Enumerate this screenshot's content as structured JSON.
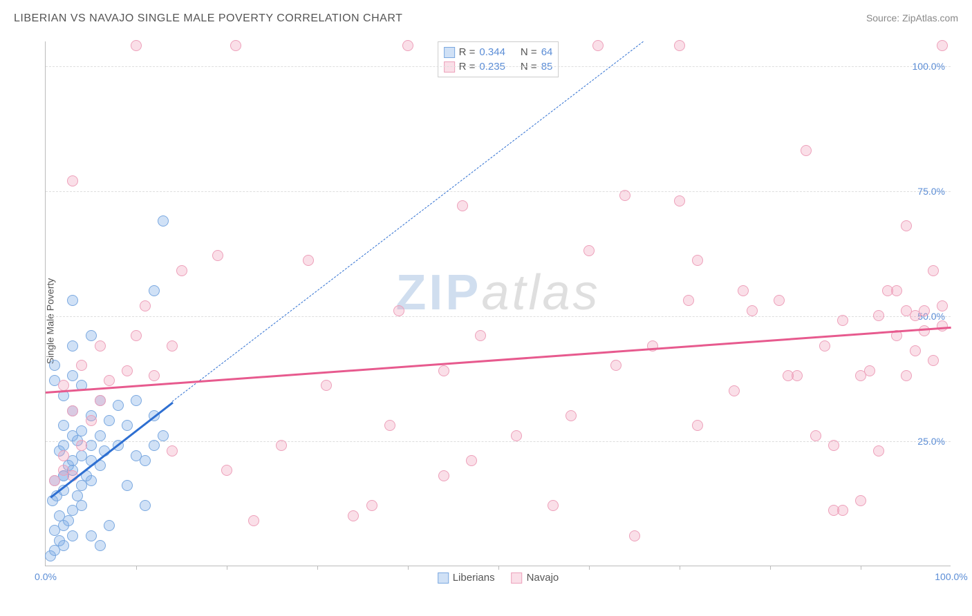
{
  "header": {
    "title": "LIBERIAN VS NAVAJO SINGLE MALE POVERTY CORRELATION CHART",
    "source": "Source: ZipAtlas.com"
  },
  "chart": {
    "type": "scatter",
    "ylabel": "Single Male Poverty",
    "xlim": [
      0,
      100
    ],
    "ylim": [
      0,
      105
    ],
    "background_color": "#ffffff",
    "grid_color": "#dddddd",
    "axis_color": "#bbbbbb",
    "tick_label_color": "#5b8dd6",
    "y_gridlines": [
      25,
      50,
      75,
      100
    ],
    "y_tick_labels": [
      "25.0%",
      "50.0%",
      "75.0%",
      "100.0%"
    ],
    "x_ticks_minor": [
      10,
      20,
      30,
      40,
      50,
      60,
      70,
      80,
      90
    ],
    "x_tick_labels": [
      {
        "pos": 0,
        "label": "0.0%"
      },
      {
        "pos": 100,
        "label": "100.0%"
      }
    ],
    "watermark": {
      "zip": "ZIP",
      "atlas": "atlas"
    },
    "point_radius": 8,
    "point_border_width": 1,
    "series": [
      {
        "name": "Liberians",
        "fill_color": "rgba(120,170,230,0.35)",
        "stroke_color": "#7aa8e0",
        "trend_color": "#2e6fd1",
        "trend_width": 2.5,
        "trend_solid": {
          "x1": 0.5,
          "y1": 14,
          "x2": 14,
          "y2": 33
        },
        "trend_dash": {
          "x1": 14,
          "y1": 33,
          "x2": 66,
          "y2": 105
        },
        "points": [
          [
            0.5,
            2
          ],
          [
            1,
            3
          ],
          [
            1.5,
            5
          ],
          [
            2,
            4
          ],
          [
            1,
            7
          ],
          [
            2,
            8
          ],
          [
            3,
            6
          ],
          [
            1.5,
            10
          ],
          [
            2.5,
            9
          ],
          [
            3,
            11
          ],
          [
            0.8,
            13
          ],
          [
            1.2,
            14
          ],
          [
            2,
            15
          ],
          [
            3.5,
            14
          ],
          [
            4,
            16
          ],
          [
            1,
            17
          ],
          [
            2,
            18
          ],
          [
            3,
            19
          ],
          [
            4.5,
            18
          ],
          [
            5,
            17
          ],
          [
            2.5,
            20
          ],
          [
            3,
            21
          ],
          [
            4,
            22
          ],
          [
            5,
            21
          ],
          [
            6,
            20
          ],
          [
            1.5,
            23
          ],
          [
            2,
            24
          ],
          [
            3.5,
            25
          ],
          [
            5,
            24
          ],
          [
            6.5,
            23
          ],
          [
            8,
            24
          ],
          [
            3,
            26
          ],
          [
            4,
            27
          ],
          [
            6,
            26
          ],
          [
            2,
            28
          ],
          [
            5,
            30
          ],
          [
            7,
            29
          ],
          [
            9,
            28
          ],
          [
            3,
            31
          ],
          [
            6,
            33
          ],
          [
            8,
            32
          ],
          [
            2,
            34
          ],
          [
            4,
            36
          ],
          [
            3,
            38
          ],
          [
            1,
            40
          ],
          [
            3,
            44
          ],
          [
            5,
            46
          ],
          [
            1,
            37
          ],
          [
            10,
            22
          ],
          [
            11,
            21
          ],
          [
            9,
            16
          ],
          [
            11,
            12
          ],
          [
            12,
            24
          ],
          [
            13,
            26
          ],
          [
            10,
            33
          ],
          [
            12,
            30
          ],
          [
            3,
            53
          ],
          [
            12,
            55
          ],
          [
            13,
            69
          ],
          [
            2,
            18
          ],
          [
            4,
            12
          ],
          [
            5,
            6
          ],
          [
            6,
            4
          ],
          [
            7,
            8
          ]
        ]
      },
      {
        "name": "Navajo",
        "fill_color": "rgba(240,150,180,0.30)",
        "stroke_color": "#eda0ba",
        "trend_color": "#e75a8e",
        "trend_width": 2.5,
        "trend_solid": {
          "x1": 0,
          "y1": 35,
          "x2": 100,
          "y2": 48
        },
        "trend_dash": null,
        "points": [
          [
            1,
            17
          ],
          [
            2,
            19
          ],
          [
            3,
            18
          ],
          [
            2,
            22
          ],
          [
            4,
            24
          ],
          [
            5,
            29
          ],
          [
            3,
            31
          ],
          [
            6,
            33
          ],
          [
            2,
            36
          ],
          [
            4,
            40
          ],
          [
            7,
            37
          ],
          [
            9,
            39
          ],
          [
            12,
            38
          ],
          [
            6,
            44
          ],
          [
            10,
            46
          ],
          [
            14,
            44
          ],
          [
            3,
            77
          ],
          [
            11,
            52
          ],
          [
            15,
            59
          ],
          [
            19,
            62
          ],
          [
            10,
            104
          ],
          [
            21,
            104
          ],
          [
            14,
            23
          ],
          [
            20,
            19
          ],
          [
            23,
            9
          ],
          [
            26,
            24
          ],
          [
            29,
            61
          ],
          [
            31,
            36
          ],
          [
            34,
            10
          ],
          [
            36,
            12
          ],
          [
            40,
            104
          ],
          [
            39,
            51
          ],
          [
            44,
            39
          ],
          [
            47,
            21
          ],
          [
            48,
            46
          ],
          [
            46,
            72
          ],
          [
            56,
            12
          ],
          [
            60,
            63
          ],
          [
            61,
            104
          ],
          [
            63,
            40
          ],
          [
            64,
            74
          ],
          [
            65,
            6
          ],
          [
            70,
            104
          ],
          [
            70,
            73
          ],
          [
            71,
            53
          ],
          [
            72,
            61
          ],
          [
            77,
            55
          ],
          [
            78,
            51
          ],
          [
            81,
            53
          ],
          [
            84,
            83
          ],
          [
            82,
            38
          ],
          [
            83,
            38
          ],
          [
            85,
            26
          ],
          [
            86,
            44
          ],
          [
            87,
            11
          ],
          [
            88,
            49
          ],
          [
            88,
            11
          ],
          [
            90,
            38
          ],
          [
            91,
            39
          ],
          [
            92,
            23
          ],
          [
            92,
            50
          ],
          [
            93,
            55
          ],
          [
            94,
            55
          ],
          [
            94,
            46
          ],
          [
            95,
            51
          ],
          [
            95,
            68
          ],
          [
            96,
            50
          ],
          [
            96,
            43
          ],
          [
            97,
            47
          ],
          [
            97,
            51
          ],
          [
            98,
            59
          ],
          [
            98,
            41
          ],
          [
            99,
            48
          ],
          [
            99,
            52
          ],
          [
            99,
            104
          ],
          [
            95,
            38
          ],
          [
            90,
            13
          ],
          [
            87,
            24
          ],
          [
            76,
            35
          ],
          [
            72,
            28
          ],
          [
            67,
            44
          ],
          [
            58,
            30
          ],
          [
            52,
            26
          ],
          [
            44,
            18
          ],
          [
            38,
            28
          ]
        ]
      }
    ],
    "stats_box": {
      "rows": [
        {
          "swatch_fill": "rgba(120,170,230,0.35)",
          "swatch_stroke": "#7aa8e0",
          "r_label": "R =",
          "r": "0.344",
          "n_label": "N =",
          "n": "64"
        },
        {
          "swatch_fill": "rgba(240,150,180,0.30)",
          "swatch_stroke": "#eda0ba",
          "r_label": "R =",
          "r": "0.235",
          "n_label": "N =",
          "n": "85"
        }
      ]
    },
    "bottom_legend": [
      {
        "swatch_fill": "rgba(120,170,230,0.35)",
        "swatch_stroke": "#7aa8e0",
        "label": "Liberians"
      },
      {
        "swatch_fill": "rgba(240,150,180,0.30)",
        "swatch_stroke": "#eda0ba",
        "label": "Navajo"
      }
    ]
  }
}
